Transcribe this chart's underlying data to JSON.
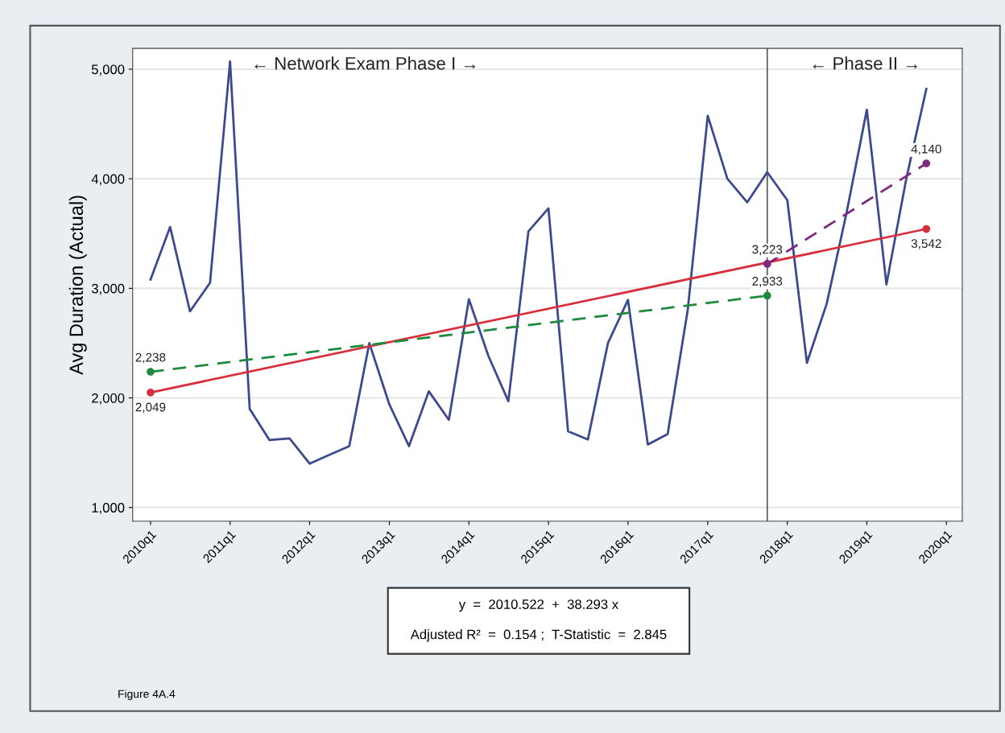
{
  "chart_data": {
    "type": "line",
    "ylabel": "Avg Duration (Actual)",
    "x": [
      "2010-01",
      "2010-04",
      "2010-07",
      "2010-10",
      "2011-01",
      "2011-04",
      "2011-07",
      "2011-10",
      "2012-01",
      "2012-04",
      "2012-07",
      "2012-10",
      "2013-01",
      "2013-04",
      "2013-07",
      "2013-10",
      "2014-01",
      "2014-04",
      "2014-07",
      "2014-10",
      "2015-01",
      "2015-04",
      "2015-07",
      "2015-10",
      "2016-01",
      "2016-04",
      "2016-07",
      "2016-10",
      "2017-01",
      "2017-04",
      "2017-07",
      "2017-10",
      "2018-01",
      "2018-04",
      "2018-07",
      "2018-10",
      "2019-01",
      "2019-04",
      "2019-07",
      "2019-10"
    ],
    "series": [
      {
        "color": "#3b4a8e",
        "marker": "none",
        "line_style": "solid",
        "values": [
          3080,
          3560,
          2790,
          3050,
          5070,
          1900,
          1615,
          1630,
          1400,
          1480,
          1560,
          2500,
          1940,
          1560,
          2060,
          1800,
          2900,
          2380,
          1970,
          3520,
          3730,
          1695,
          1620,
          2500,
          2895,
          1575,
          1670,
          2800,
          4575,
          4000,
          3785,
          4060,
          3805,
          2320,
          2860,
          3700,
          4630,
          3035,
          4000,
          4820
        ]
      },
      {
        "type": "line",
        "color": "#d7303c",
        "marker": "circle",
        "line_style": "solid",
        "x": [
          "2010-01",
          "2019-10"
        ],
        "values": [
          2049,
          3542
        ],
        "value_labels": [
          "2,049",
          "3,542"
        ]
      },
      {
        "type": "line",
        "color": "#1d8a3e",
        "marker": "circle",
        "line_style": "dashed",
        "x": [
          "2010-01",
          "2017-10"
        ],
        "values": [
          2238,
          2933
        ],
        "value_labels": [
          "2,238",
          "2,933"
        ]
      },
      {
        "type": "line",
        "color": "#7d2a80",
        "marker": "circle",
        "line_style": "dashed",
        "x": [
          "2017-10",
          "2019-10"
        ],
        "values": [
          3223,
          4140
        ],
        "value_labels": [
          "3,223",
          "4,140"
        ]
      }
    ],
    "xlim": [
      "2009-10-11",
      "2020-03-14"
    ],
    "xticks": [
      {
        "value": "2010-01",
        "label": "2010q1"
      },
      {
        "value": "2011-01",
        "label": "2011q1"
      },
      {
        "value": "2012-01",
        "label": "2012q1"
      },
      {
        "value": "2013-01",
        "label": "2013q1"
      },
      {
        "value": "2014-01",
        "label": "2014q1"
      },
      {
        "value": "2015-01",
        "label": "2015q1"
      },
      {
        "value": "2016-01",
        "label": "2016q1"
      },
      {
        "value": "2017-01",
        "label": "2017q1"
      },
      {
        "value": "2018-01",
        "label": "2018q1"
      },
      {
        "value": "2019-01",
        "label": "2019q1"
      },
      {
        "value": "2020-01",
        "label": "2020q1"
      }
    ],
    "ylim": [
      875,
      5190
    ],
    "yticks": [
      {
        "value": 1000,
        "label": "1,000"
      },
      {
        "value": 2000,
        "label": "2,000"
      },
      {
        "value": 3000,
        "label": "3,000"
      },
      {
        "value": 4000,
        "label": "4,000"
      },
      {
        "value": 5000,
        "label": "5,000"
      }
    ],
    "grid": "y",
    "ref_lines": [
      {
        "axis": "x",
        "value": "2017-10",
        "color": "#555555"
      }
    ],
    "annotations": [
      "← Network Exam Phase I →",
      "← Phase II →",
      "y  =  2010.522  +  38.293 x",
      "Adjusted R²  =  0.154 ;  T-Statistic  =  2.845",
      "Figure 4A.4"
    ]
  }
}
